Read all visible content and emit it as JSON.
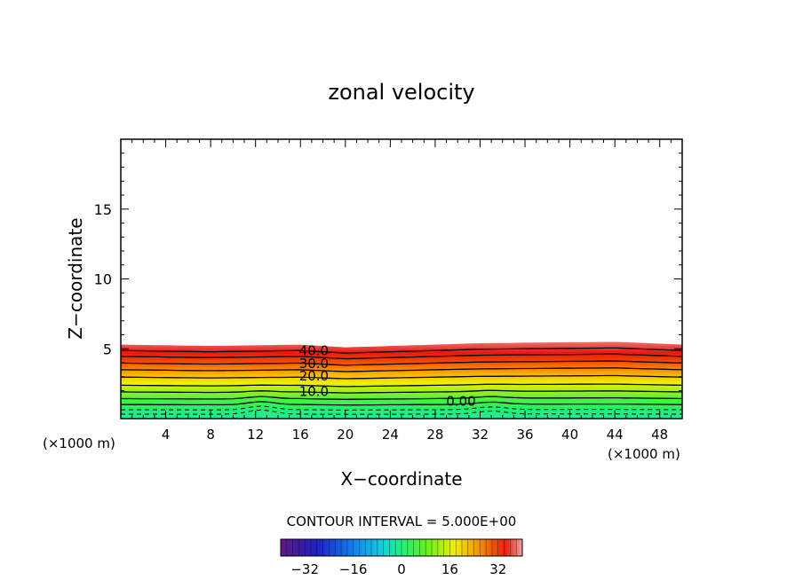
{
  "chart_data": {
    "type": "contour",
    "title": "zonal velocity",
    "xlabel": "X−coordinate",
    "ylabel": "Z−coordinate",
    "x_unit_left": "(×1000 m)",
    "x_unit_right": "(×1000 m)",
    "xlim": [
      0,
      50
    ],
    "ylim": [
      0,
      20
    ],
    "x_ticks": [
      4,
      8,
      12,
      16,
      20,
      24,
      28,
      32,
      36,
      40,
      44,
      48
    ],
    "y_ticks": [
      5,
      10,
      15
    ],
    "x_tick_labels": [
      "4",
      "8",
      "12",
      "16",
      "20",
      "24",
      "28",
      "32",
      "36",
      "40",
      "44",
      "48"
    ],
    "y_tick_labels": [
      "5",
      "10",
      "15"
    ],
    "contour_interval_text": "CONTOUR INTERVAL = 5.000E+00",
    "contour_labels": [
      {
        "text": "40.0",
        "x": 17.2,
        "z": 4.85
      },
      {
        "text": "30.0",
        "x": 17.2,
        "z": 3.95
      },
      {
        "text": "20.0",
        "x": 17.2,
        "z": 3.05
      },
      {
        "text": "10.0",
        "x": 17.2,
        "z": 1.95
      },
      {
        "text": "0.00",
        "x": 30.3,
        "z": 1.25
      }
    ],
    "colorbar": {
      "min": -40,
      "max": 40,
      "ticks": [
        -32,
        -16,
        0,
        16,
        32
      ],
      "tick_labels": [
        "−32",
        "−16",
        "0",
        "16",
        "32"
      ]
    },
    "data_top_z": [
      5.3,
      5.2,
      5.3,
      5.1,
      5.4,
      5.5,
      5.3
    ],
    "data_top_x": [
      0,
      8,
      16,
      20,
      32,
      44,
      50
    ]
  }
}
